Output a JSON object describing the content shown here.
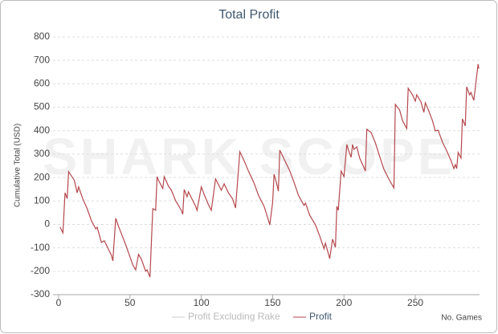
{
  "chart_data": {
    "type": "line",
    "title": "Total Profit",
    "watermark": "SHARK SCOPE",
    "y_label": "Cumulative Total (USD)",
    "x_label": "No. Games",
    "xlim": [
      0,
      295
    ],
    "xticks": [
      0,
      50,
      100,
      150,
      200,
      250
    ],
    "ylim": [
      -300,
      800
    ],
    "yticks": [
      -300,
      -200,
      -100,
      0,
      100,
      200,
      300,
      400,
      500,
      600,
      700,
      800
    ],
    "grid": true,
    "hidden_series": {
      "name": "Profit Excluding Rake",
      "color": "#cccccc"
    },
    "series": [
      {
        "name": "Profit",
        "color": "#b5484d",
        "x": [
          1,
          3,
          4.5,
          6,
          7,
          11,
          13,
          14,
          17,
          20,
          23,
          26,
          27,
          30,
          32,
          37,
          38,
          40,
          42,
          47,
          52,
          54,
          56,
          58,
          61,
          62,
          64,
          66,
          68,
          69,
          70,
          73,
          74,
          77,
          79,
          82,
          86,
          87,
          88,
          90,
          91,
          96,
          97,
          100,
          102,
          105,
          107,
          110,
          114,
          116,
          119,
          122,
          124,
          127,
          130,
          133,
          137,
          140,
          144,
          146,
          148,
          150,
          151,
          153,
          154,
          155,
          158,
          162,
          165,
          168,
          172,
          173,
          176,
          180,
          183,
          186,
          187,
          190,
          192,
          194,
          195,
          196,
          198,
          200,
          202,
          203,
          205,
          206,
          207,
          209,
          211,
          215,
          216,
          219,
          222,
          225,
          228,
          232,
          235,
          236,
          239,
          241,
          244,
          245,
          248,
          250,
          251,
          254,
          256,
          257,
          259,
          262,
          264,
          266,
          269,
          272,
          275,
          277,
          278,
          279,
          280,
          282,
          283,
          285,
          286,
          288,
          289,
          291,
          294,
          294.5
        ],
        "values": [
          -12,
          -36,
          135,
          110,
          225,
          188,
          135,
          160,
          108,
          67,
          15,
          -19,
          -12,
          -77,
          -70,
          -132,
          -156,
          26,
          -9,
          -87,
          -173,
          -194,
          -128,
          -149,
          -200,
          -194,
          -225,
          67,
          60,
          204,
          188,
          153,
          204,
          163,
          146,
          101,
          60,
          43,
          149,
          118,
          139,
          77,
          60,
          160,
          128,
          84,
          60,
          194,
          146,
          173,
          135,
          108,
          70,
          310,
          272,
          228,
          176,
          125,
          77,
          39,
          -2,
          94,
          214,
          170,
          142,
          317,
          279,
          228,
          180,
          125,
          81,
          91,
          39,
          -2,
          -50,
          -104,
          -80,
          -146,
          -63,
          -98,
          77,
          60,
          228,
          204,
          341,
          320,
          286,
          341,
          320,
          331,
          283,
          228,
          406,
          392,
          348,
          290,
          235,
          187,
          156,
          512,
          488,
          443,
          409,
          581,
          553,
          526,
          553,
          522,
          478,
          519,
          491,
          443,
          399,
          402,
          351,
          314,
          272,
          238,
          255,
          238,
          307,
          283,
          450,
          420,
          587,
          553,
          563,
          529,
          684,
          665
        ]
      }
    ]
  }
}
